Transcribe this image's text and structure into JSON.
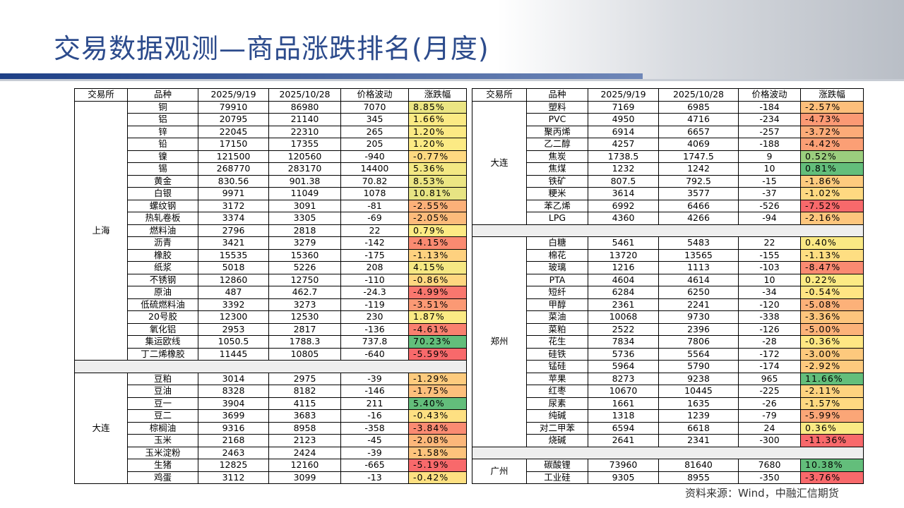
{
  "title": "交易数据观测—商品涨跌排名(月度)",
  "footer": "资料来源：Wind，中融汇信期货",
  "tables": [
    {
      "header": [
        "交易所",
        "品种",
        "2025/9/19",
        "2025/10/28",
        "价格波动",
        "涨跌幅"
      ],
      "groups": [
        {
          "exchange": "上海",
          "rows": [
            [
              "铜",
              "79910",
              "86980",
              "7070",
              "8.85%"
            ],
            [
              "铝",
              "20795",
              "21140",
              "345",
              "1.66%"
            ],
            [
              "锌",
              "22045",
              "22310",
              "265",
              "1.20%"
            ],
            [
              "铅",
              "17150",
              "17355",
              "205",
              "1.20%"
            ],
            [
              "镍",
              "121500",
              "120560",
              "-940",
              "-0.77%"
            ],
            [
              "锡",
              "268770",
              "283170",
              "14400",
              "5.36%"
            ],
            [
              "黄金",
              "830.56",
              "901.38",
              "70.82",
              "8.53%"
            ],
            [
              "白银",
              "9971",
              "11049",
              "1078",
              "10.81%"
            ],
            [
              "螺纹钢",
              "3172",
              "3091",
              "-81",
              "-2.55%"
            ],
            [
              "热轧卷板",
              "3374",
              "3305",
              "-69",
              "-2.05%"
            ],
            [
              "燃料油",
              "2796",
              "2818",
              "22",
              "0.79%"
            ],
            [
              "沥青",
              "3421",
              "3279",
              "-142",
              "-4.15%"
            ],
            [
              "橡胶",
              "15535",
              "15360",
              "-175",
              "-1.13%"
            ],
            [
              "纸浆",
              "5018",
              "5226",
              "208",
              "4.15%"
            ],
            [
              "不锈钢",
              "12860",
              "12750",
              "-110",
              "-0.86%"
            ],
            [
              "原油",
              "487",
              "462.7",
              "-24.3",
              "-4.99%"
            ],
            [
              "低硫燃料油",
              "3392",
              "3273",
              "-119",
              "-3.51%"
            ],
            [
              "20号胶",
              "12300",
              "12530",
              "230",
              "1.87%"
            ],
            [
              "氧化铝",
              "2953",
              "2817",
              "-136",
              "-4.61%"
            ],
            [
              "集运欧线",
              "1050.5",
              "1788.3",
              "737.8",
              "70.23%"
            ],
            [
              "丁二烯橡胶",
              "11445",
              "10805",
              "-640",
              "-5.59%"
            ]
          ]
        },
        {
          "exchange": "大连",
          "rows": [
            [
              "豆粕",
              "3014",
              "2975",
              "-39",
              "-1.29%"
            ],
            [
              "豆油",
              "8328",
              "8182",
              "-146",
              "-1.75%"
            ],
            [
              "豆一",
              "3904",
              "4115",
              "211",
              "5.40%"
            ],
            [
              "豆二",
              "3699",
              "3683",
              "-16",
              "-0.43%"
            ],
            [
              "棕榈油",
              "9316",
              "8958",
              "-358",
              "-3.84%"
            ],
            [
              "玉米",
              "2168",
              "2123",
              "-45",
              "-2.08%"
            ],
            [
              "玉米淀粉",
              "2463",
              "2424",
              "-39",
              "-1.58%"
            ],
            [
              "生猪",
              "12825",
              "12160",
              "-665",
              "-5.19%"
            ],
            [
              "鸡蛋",
              "3112",
              "3099",
              "-13",
              "-0.42%"
            ]
          ]
        }
      ]
    },
    {
      "header": [
        "交易所",
        "品种",
        "2025/9/19",
        "2025/10/28",
        "价格波动",
        "涨跌幅"
      ],
      "groups": [
        {
          "exchange": "大连",
          "rows": [
            [
              "塑料",
              "7169",
              "6985",
              "-184",
              "-2.57%"
            ],
            [
              "PVC",
              "4950",
              "4716",
              "-234",
              "-4.73%"
            ],
            [
              "聚丙烯",
              "6914",
              "6657",
              "-257",
              "-3.72%"
            ],
            [
              "乙二醇",
              "4257",
              "4069",
              "-188",
              "-4.42%"
            ],
            [
              "焦炭",
              "1738.5",
              "1747.5",
              "9",
              "0.52%"
            ],
            [
              "焦煤",
              "1232",
              "1242",
              "10",
              "0.81%"
            ],
            [
              "铁矿",
              "807.5",
              "792.5",
              "-15",
              "-1.86%"
            ],
            [
              "粳米",
              "3614",
              "3577",
              "-37",
              "-1.02%"
            ],
            [
              "苯乙烯",
              "6992",
              "6466",
              "-526",
              "-7.52%"
            ],
            [
              "LPG",
              "4360",
              "4266",
              "-94",
              "-2.16%"
            ]
          ]
        },
        {
          "exchange": "郑州",
          "rows": [
            [
              "白糖",
              "5461",
              "5483",
              "22",
              "0.40%"
            ],
            [
              "棉花",
              "13720",
              "13565",
              "-155",
              "-1.13%"
            ],
            [
              "玻璃",
              "1216",
              "1113",
              "-103",
              "-8.47%"
            ],
            [
              "PTA",
              "4604",
              "4614",
              "10",
              "0.22%"
            ],
            [
              "短纤",
              "6284",
              "6250",
              "-34",
              "-0.54%"
            ],
            [
              "甲醇",
              "2361",
              "2241",
              "-120",
              "-5.08%"
            ],
            [
              "菜油",
              "10068",
              "9730",
              "-338",
              "-3.36%"
            ],
            [
              "菜粕",
              "2522",
              "2396",
              "-126",
              "-5.00%"
            ],
            [
              "花生",
              "7834",
              "7806",
              "-28",
              "-0.36%"
            ],
            [
              "硅铁",
              "5736",
              "5564",
              "-172",
              "-3.00%"
            ],
            [
              "锰硅",
              "5964",
              "5790",
              "-174",
              "-2.92%"
            ],
            [
              "苹果",
              "8273",
              "9238",
              "965",
              "11.66%"
            ],
            [
              "红枣",
              "10670",
              "10445",
              "-225",
              "-2.11%"
            ],
            [
              "尿素",
              "1661",
              "1635",
              "-26",
              "-1.57%"
            ],
            [
              "纯碱",
              "1318",
              "1239",
              "-79",
              "-5.99%"
            ],
            [
              "对二甲苯",
              "6594",
              "6618",
              "24",
              "0.36%"
            ],
            [
              "烧碱",
              "2641",
              "2341",
              "-300",
              "-11.36%"
            ]
          ]
        },
        {
          "exchange": "广州",
          "rows": [
            [
              "碳酸锂",
              "73960",
              "81640",
              "7680",
              "10.38%"
            ],
            [
              "工业硅",
              "9305",
              "8955",
              "-350",
              "-3.76%"
            ]
          ]
        }
      ]
    }
  ]
}
